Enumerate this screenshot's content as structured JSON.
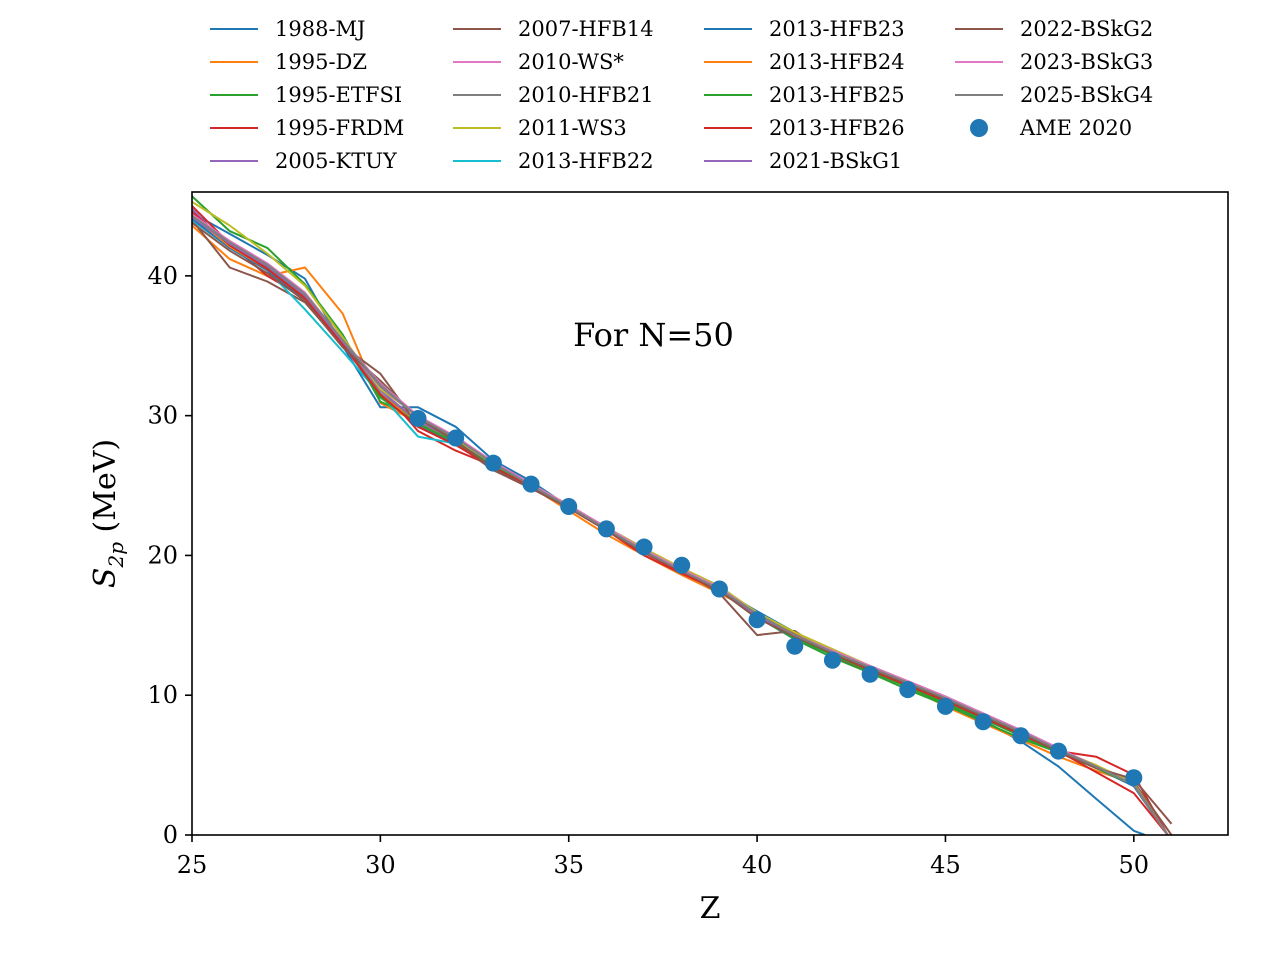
{
  "chart_data": {
    "type": "line",
    "annotation": "For N=50",
    "xlabel": "Z",
    "ylabel_main": "S",
    "ylabel_sub": "2p",
    "ylabel_unit": " (MeV)",
    "xlim": [
      25,
      52.5
    ],
    "ylim": [
      0,
      46
    ],
    "xticks": [
      25,
      30,
      35,
      40,
      45,
      50
    ],
    "yticks": [
      0,
      10,
      20,
      30,
      40
    ],
    "grid": false,
    "legend_position": "top (above plot), 4 columns",
    "series": [
      {
        "name": "1988-MJ",
        "color": "#1f77b4",
        "x": [
          25,
          26,
          27,
          28,
          29,
          30,
          31,
          32,
          33,
          34,
          35,
          36,
          37,
          38,
          39,
          40,
          41,
          42,
          43,
          44,
          45,
          46,
          47,
          48,
          49,
          50,
          50.3
        ],
        "y": [
          44.5,
          43.0,
          41.5,
          39.8,
          35.0,
          30.6,
          30.6,
          29.2,
          26.8,
          25.3,
          23.5,
          22.0,
          20.5,
          19.0,
          17.6,
          16.0,
          14.5,
          13.0,
          11.8,
          10.7,
          9.5,
          8.2,
          6.7,
          4.9,
          2.6,
          0.3,
          0
        ]
      },
      {
        "name": "1995-DZ",
        "color": "#ff7f0e",
        "x": [
          25,
          26,
          27,
          28,
          29,
          30,
          31,
          32,
          33,
          34,
          35,
          36,
          37,
          38,
          39,
          40,
          41,
          42,
          43,
          44,
          45,
          46,
          47,
          48,
          49,
          50,
          50.9
        ],
        "y": [
          43.6,
          41.2,
          40.0,
          40.6,
          37.3,
          30.9,
          29.5,
          28.0,
          26.5,
          24.9,
          23.2,
          21.5,
          20.0,
          18.6,
          17.3,
          15.9,
          14.3,
          13.0,
          11.8,
          10.6,
          9.2,
          8.0,
          6.8,
          5.6,
          4.6,
          3.7,
          0
        ]
      },
      {
        "name": "1995-ETFSI",
        "color": "#2ca02c",
        "x": [
          25,
          26,
          27,
          28,
          29,
          30,
          31,
          32,
          33,
          34,
          35,
          36,
          37,
          38,
          39,
          40,
          41,
          42,
          43,
          44,
          45,
          46,
          47,
          48,
          49,
          50,
          50.9
        ],
        "y": [
          45.7,
          43.2,
          42.0,
          39.4,
          35.8,
          31.0,
          29.8,
          28.3,
          26.6,
          25.0,
          23.5,
          21.9,
          20.3,
          18.9,
          17.6,
          15.6,
          14.0,
          12.7,
          11.6,
          10.4,
          9.3,
          8.1,
          6.9,
          5.9,
          4.8,
          3.8,
          0
        ]
      },
      {
        "name": "1995-FRDM",
        "color": "#d62728",
        "x": [
          25,
          26,
          27,
          28,
          29,
          30,
          31,
          32,
          33,
          34,
          35,
          36,
          37,
          38,
          39,
          40,
          41,
          42,
          43,
          44,
          45,
          46,
          47,
          48,
          49,
          50,
          50.9
        ],
        "y": [
          45.0,
          42.3,
          40.0,
          38.4,
          35.2,
          32.0,
          28.9,
          27.5,
          26.4,
          24.9,
          23.4,
          21.8,
          20.0,
          18.7,
          17.5,
          15.9,
          14.4,
          13.0,
          11.8,
          10.8,
          9.6,
          8.3,
          7.2,
          6.0,
          5.6,
          4.3,
          0
        ]
      },
      {
        "name": "2005-KTUY",
        "color": "#9467bd",
        "x": [
          25,
          26,
          27,
          28,
          29,
          30,
          31,
          32,
          33,
          34,
          35,
          36,
          37,
          38,
          39,
          40,
          41,
          42,
          43,
          44,
          45,
          46,
          47,
          48,
          49,
          50,
          50.9
        ],
        "y": [
          44.8,
          42.0,
          40.5,
          38.2,
          35.0,
          31.8,
          29.6,
          28.2,
          26.5,
          25.0,
          23.6,
          22.0,
          20.5,
          19.0,
          17.5,
          15.8,
          14.3,
          13.2,
          12.0,
          10.9,
          9.8,
          8.6,
          7.4,
          6.1,
          4.9,
          3.5,
          0
        ]
      },
      {
        "name": "2007-HFB14",
        "color": "#8c564b",
        "x": [
          25,
          26,
          27,
          28,
          29,
          30,
          31,
          32,
          33,
          34,
          35,
          36,
          37,
          38,
          39,
          40,
          41,
          42,
          43,
          44,
          45,
          46,
          47,
          48,
          49,
          50,
          51.0
        ],
        "y": [
          44.0,
          40.6,
          39.6,
          38.1,
          35.0,
          33.0,
          29.3,
          28.0,
          26.1,
          24.8,
          23.4,
          21.9,
          20.3,
          18.9,
          17.3,
          14.3,
          14.6,
          12.8,
          11.7,
          10.6,
          9.6,
          8.4,
          7.2,
          6.0,
          4.8,
          3.8,
          0
        ]
      },
      {
        "name": "2010-WS*",
        "color": "#e377c2",
        "x": [
          25,
          26,
          27,
          28,
          29,
          30,
          31,
          32,
          33,
          34,
          35,
          36,
          37,
          38,
          39,
          40,
          41,
          42,
          43,
          44,
          45,
          46,
          47,
          48,
          49,
          50,
          50.9
        ],
        "y": [
          44.4,
          42.4,
          40.8,
          38.7,
          35.3,
          32.0,
          30.0,
          28.4,
          26.7,
          25.1,
          23.5,
          21.9,
          20.4,
          19.1,
          17.8,
          15.7,
          14.3,
          13.2,
          12.1,
          11.0,
          9.9,
          8.7,
          7.5,
          6.2,
          4.9,
          3.6,
          0
        ]
      },
      {
        "name": "2010-HFB21",
        "color": "#7f7f7f",
        "x": [
          25,
          26,
          27,
          28,
          29,
          30,
          31,
          32,
          33,
          34,
          35,
          36,
          37,
          38,
          39,
          40,
          41,
          42,
          43,
          44,
          45,
          46,
          47,
          48,
          49,
          50,
          50.9
        ],
        "y": [
          44.2,
          42.1,
          40.5,
          38.5,
          35.2,
          31.6,
          29.5,
          28.1,
          26.4,
          24.9,
          23.5,
          21.8,
          20.3,
          18.9,
          17.6,
          15.7,
          14.2,
          13.0,
          11.9,
          10.8,
          9.7,
          8.5,
          7.3,
          6.0,
          4.8,
          3.6,
          0
        ]
      },
      {
        "name": "2011-WS3",
        "color": "#bcbd22",
        "x": [
          25,
          26,
          27,
          28,
          29,
          30,
          31,
          32,
          33,
          34,
          35,
          36,
          37,
          38,
          39,
          40,
          41,
          42,
          43,
          44,
          45,
          46,
          47,
          48,
          49,
          50,
          50.9
        ],
        "y": [
          45.3,
          43.6,
          41.6,
          39.3,
          35.6,
          31.9,
          30.0,
          28.3,
          26.6,
          25.1,
          23.6,
          22.0,
          20.5,
          19.1,
          17.8,
          15.9,
          14.5,
          13.3,
          12.1,
          11.0,
          9.9,
          8.6,
          7.3,
          6.1,
          5.0,
          3.7,
          0
        ]
      },
      {
        "name": "2013-HFB22",
        "color": "#17becf",
        "x": [
          25,
          26,
          27,
          28,
          29,
          30,
          31,
          32,
          33,
          34,
          35,
          36,
          37,
          38,
          39,
          40,
          41,
          42,
          43,
          44,
          45,
          46,
          47,
          48,
          49,
          50,
          50.9
        ],
        "y": [
          44.0,
          42.0,
          40.4,
          37.6,
          34.6,
          31.5,
          28.5,
          28.0,
          26.3,
          24.9,
          23.5,
          21.9,
          20.3,
          18.9,
          17.5,
          15.6,
          14.1,
          12.9,
          11.8,
          10.7,
          9.6,
          8.4,
          7.2,
          6.0,
          4.8,
          3.5,
          0
        ]
      },
      {
        "name": "2013-HFB23",
        "color": "#1f77b4",
        "x": [
          25,
          26,
          27,
          28,
          29,
          30,
          31,
          32,
          33,
          34,
          35,
          36,
          37,
          38,
          39,
          40,
          41,
          42,
          43,
          44,
          45,
          46,
          47,
          48,
          49,
          50,
          50.9
        ],
        "y": [
          44.1,
          42.0,
          40.4,
          38.3,
          35.1,
          31.4,
          29.3,
          28.0,
          26.3,
          24.9,
          23.4,
          21.8,
          20.2,
          18.8,
          17.5,
          15.6,
          14.1,
          12.9,
          11.8,
          10.7,
          9.6,
          8.4,
          7.2,
          6.0,
          4.8,
          3.5,
          0
        ]
      },
      {
        "name": "2013-HFB24",
        "color": "#ff7f0e",
        "x": [
          25,
          26,
          27,
          28,
          29,
          30,
          31,
          32,
          33,
          34,
          35,
          36,
          37,
          38,
          39,
          40,
          41,
          42,
          43,
          44,
          45,
          46,
          47,
          48,
          49,
          50,
          50.9
        ],
        "y": [
          44.3,
          42.1,
          40.5,
          38.4,
          35.1,
          31.5,
          29.4,
          28.1,
          26.4,
          24.9,
          23.4,
          21.8,
          20.2,
          18.8,
          17.5,
          15.7,
          14.2,
          13.0,
          11.8,
          10.7,
          9.6,
          8.4,
          7.2,
          6.0,
          4.8,
          3.6,
          0
        ]
      },
      {
        "name": "2013-HFB25",
        "color": "#2ca02c",
        "x": [
          25,
          26,
          27,
          28,
          29,
          30,
          31,
          32,
          33,
          34,
          35,
          36,
          37,
          38,
          39,
          40,
          41,
          42,
          43,
          44,
          45,
          46,
          47,
          48,
          49,
          50,
          50.9
        ],
        "y": [
          44.5,
          42.2,
          40.6,
          38.5,
          35.3,
          31.3,
          29.4,
          28.1,
          26.4,
          24.9,
          23.5,
          21.9,
          20.3,
          18.9,
          17.6,
          15.7,
          14.1,
          12.9,
          11.7,
          10.6,
          9.4,
          8.3,
          7.1,
          5.9,
          4.8,
          3.6,
          0
        ]
      },
      {
        "name": "2013-HFB26",
        "color": "#d62728",
        "x": [
          25,
          26,
          27,
          28,
          29,
          30,
          31,
          32,
          33,
          34,
          35,
          36,
          37,
          38,
          39,
          40,
          41,
          42,
          43,
          44,
          45,
          46,
          47,
          48,
          49,
          50,
          50.9
        ],
        "y": [
          44.6,
          42.2,
          40.5,
          38.4,
          35.1,
          31.5,
          29.2,
          27.9,
          26.3,
          24.9,
          23.4,
          21.8,
          20.2,
          18.8,
          17.5,
          15.8,
          14.2,
          13.0,
          11.8,
          10.7,
          9.6,
          8.4,
          7.2,
          6.0,
          4.5,
          3.0,
          0
        ]
      },
      {
        "name": "2021-BSkG1",
        "color": "#9467bd",
        "x": [
          25,
          26,
          27,
          28,
          29,
          30,
          31,
          32,
          33,
          34,
          35,
          36,
          37,
          38,
          39,
          40,
          41,
          42,
          43,
          44,
          45,
          46,
          47,
          48,
          49,
          50,
          50.9
        ],
        "y": [
          44.2,
          42.3,
          40.7,
          38.6,
          35.3,
          32.1,
          29.9,
          28.4,
          26.6,
          25.0,
          23.5,
          21.9,
          20.3,
          18.9,
          17.6,
          15.7,
          14.2,
          13.1,
          12.0,
          11.0,
          9.9,
          8.7,
          7.5,
          6.2,
          4.9,
          3.6,
          0
        ]
      },
      {
        "name": "2022-BSkG2",
        "color": "#8c564b",
        "x": [
          25,
          26,
          27,
          28,
          29,
          30,
          31,
          32,
          33,
          34,
          35,
          36,
          37,
          38,
          39,
          40,
          41,
          42,
          43,
          44,
          45,
          46,
          47,
          48,
          49,
          50,
          51.0
        ],
        "y": [
          43.8,
          41.8,
          40.2,
          38.2,
          34.9,
          32.5,
          29.8,
          28.2,
          26.2,
          24.8,
          23.4,
          21.8,
          20.2,
          18.9,
          17.5,
          15.5,
          14.2,
          13.0,
          11.9,
          10.8,
          9.7,
          8.5,
          7.3,
          6.0,
          4.8,
          4.0,
          0.8
        ]
      },
      {
        "name": "2023-BSkG3",
        "color": "#e377c2",
        "x": [
          25,
          26,
          27,
          28,
          29,
          30,
          31,
          32,
          33,
          34,
          35,
          36,
          37,
          38,
          39,
          40,
          41,
          42,
          43,
          44,
          45,
          46,
          47,
          48,
          49,
          50,
          50.9
        ],
        "y": [
          44.4,
          42.5,
          40.9,
          38.8,
          35.4,
          32.3,
          30.0,
          28.5,
          26.7,
          25.1,
          23.6,
          22.0,
          20.4,
          19.0,
          17.7,
          15.8,
          14.3,
          13.2,
          12.1,
          11.0,
          9.9,
          8.7,
          7.5,
          6.2,
          4.9,
          3.6,
          0
        ]
      },
      {
        "name": "2025-BSkG4",
        "color": "#7f7f7f",
        "x": [
          25,
          26,
          27,
          28,
          29,
          30,
          31,
          32,
          33,
          34,
          35,
          36,
          37,
          38,
          39,
          40,
          41,
          42,
          43,
          44,
          45,
          46,
          47,
          48,
          49,
          50,
          50.9
        ],
        "y": [
          44.3,
          42.4,
          40.8,
          38.7,
          35.4,
          32.2,
          29.9,
          28.4,
          26.6,
          25.0,
          23.5,
          21.9,
          20.3,
          18.9,
          17.6,
          15.8,
          14.3,
          13.1,
          12.0,
          10.9,
          9.8,
          8.6,
          7.4,
          6.1,
          4.9,
          3.6,
          0
        ]
      }
    ],
    "scatter": {
      "name": "AME 2020",
      "color": "#1f77b4",
      "x": [
        31,
        32,
        33,
        34,
        35,
        36,
        37,
        38,
        39,
        40,
        41,
        42,
        43,
        44,
        45,
        46,
        47,
        48,
        50
      ],
      "y": [
        29.8,
        28.4,
        26.6,
        25.1,
        23.5,
        21.9,
        20.6,
        19.3,
        17.6,
        15.4,
        13.5,
        12.5,
        11.5,
        10.4,
        9.2,
        8.1,
        7.1,
        6.0,
        4.1
      ]
    }
  }
}
